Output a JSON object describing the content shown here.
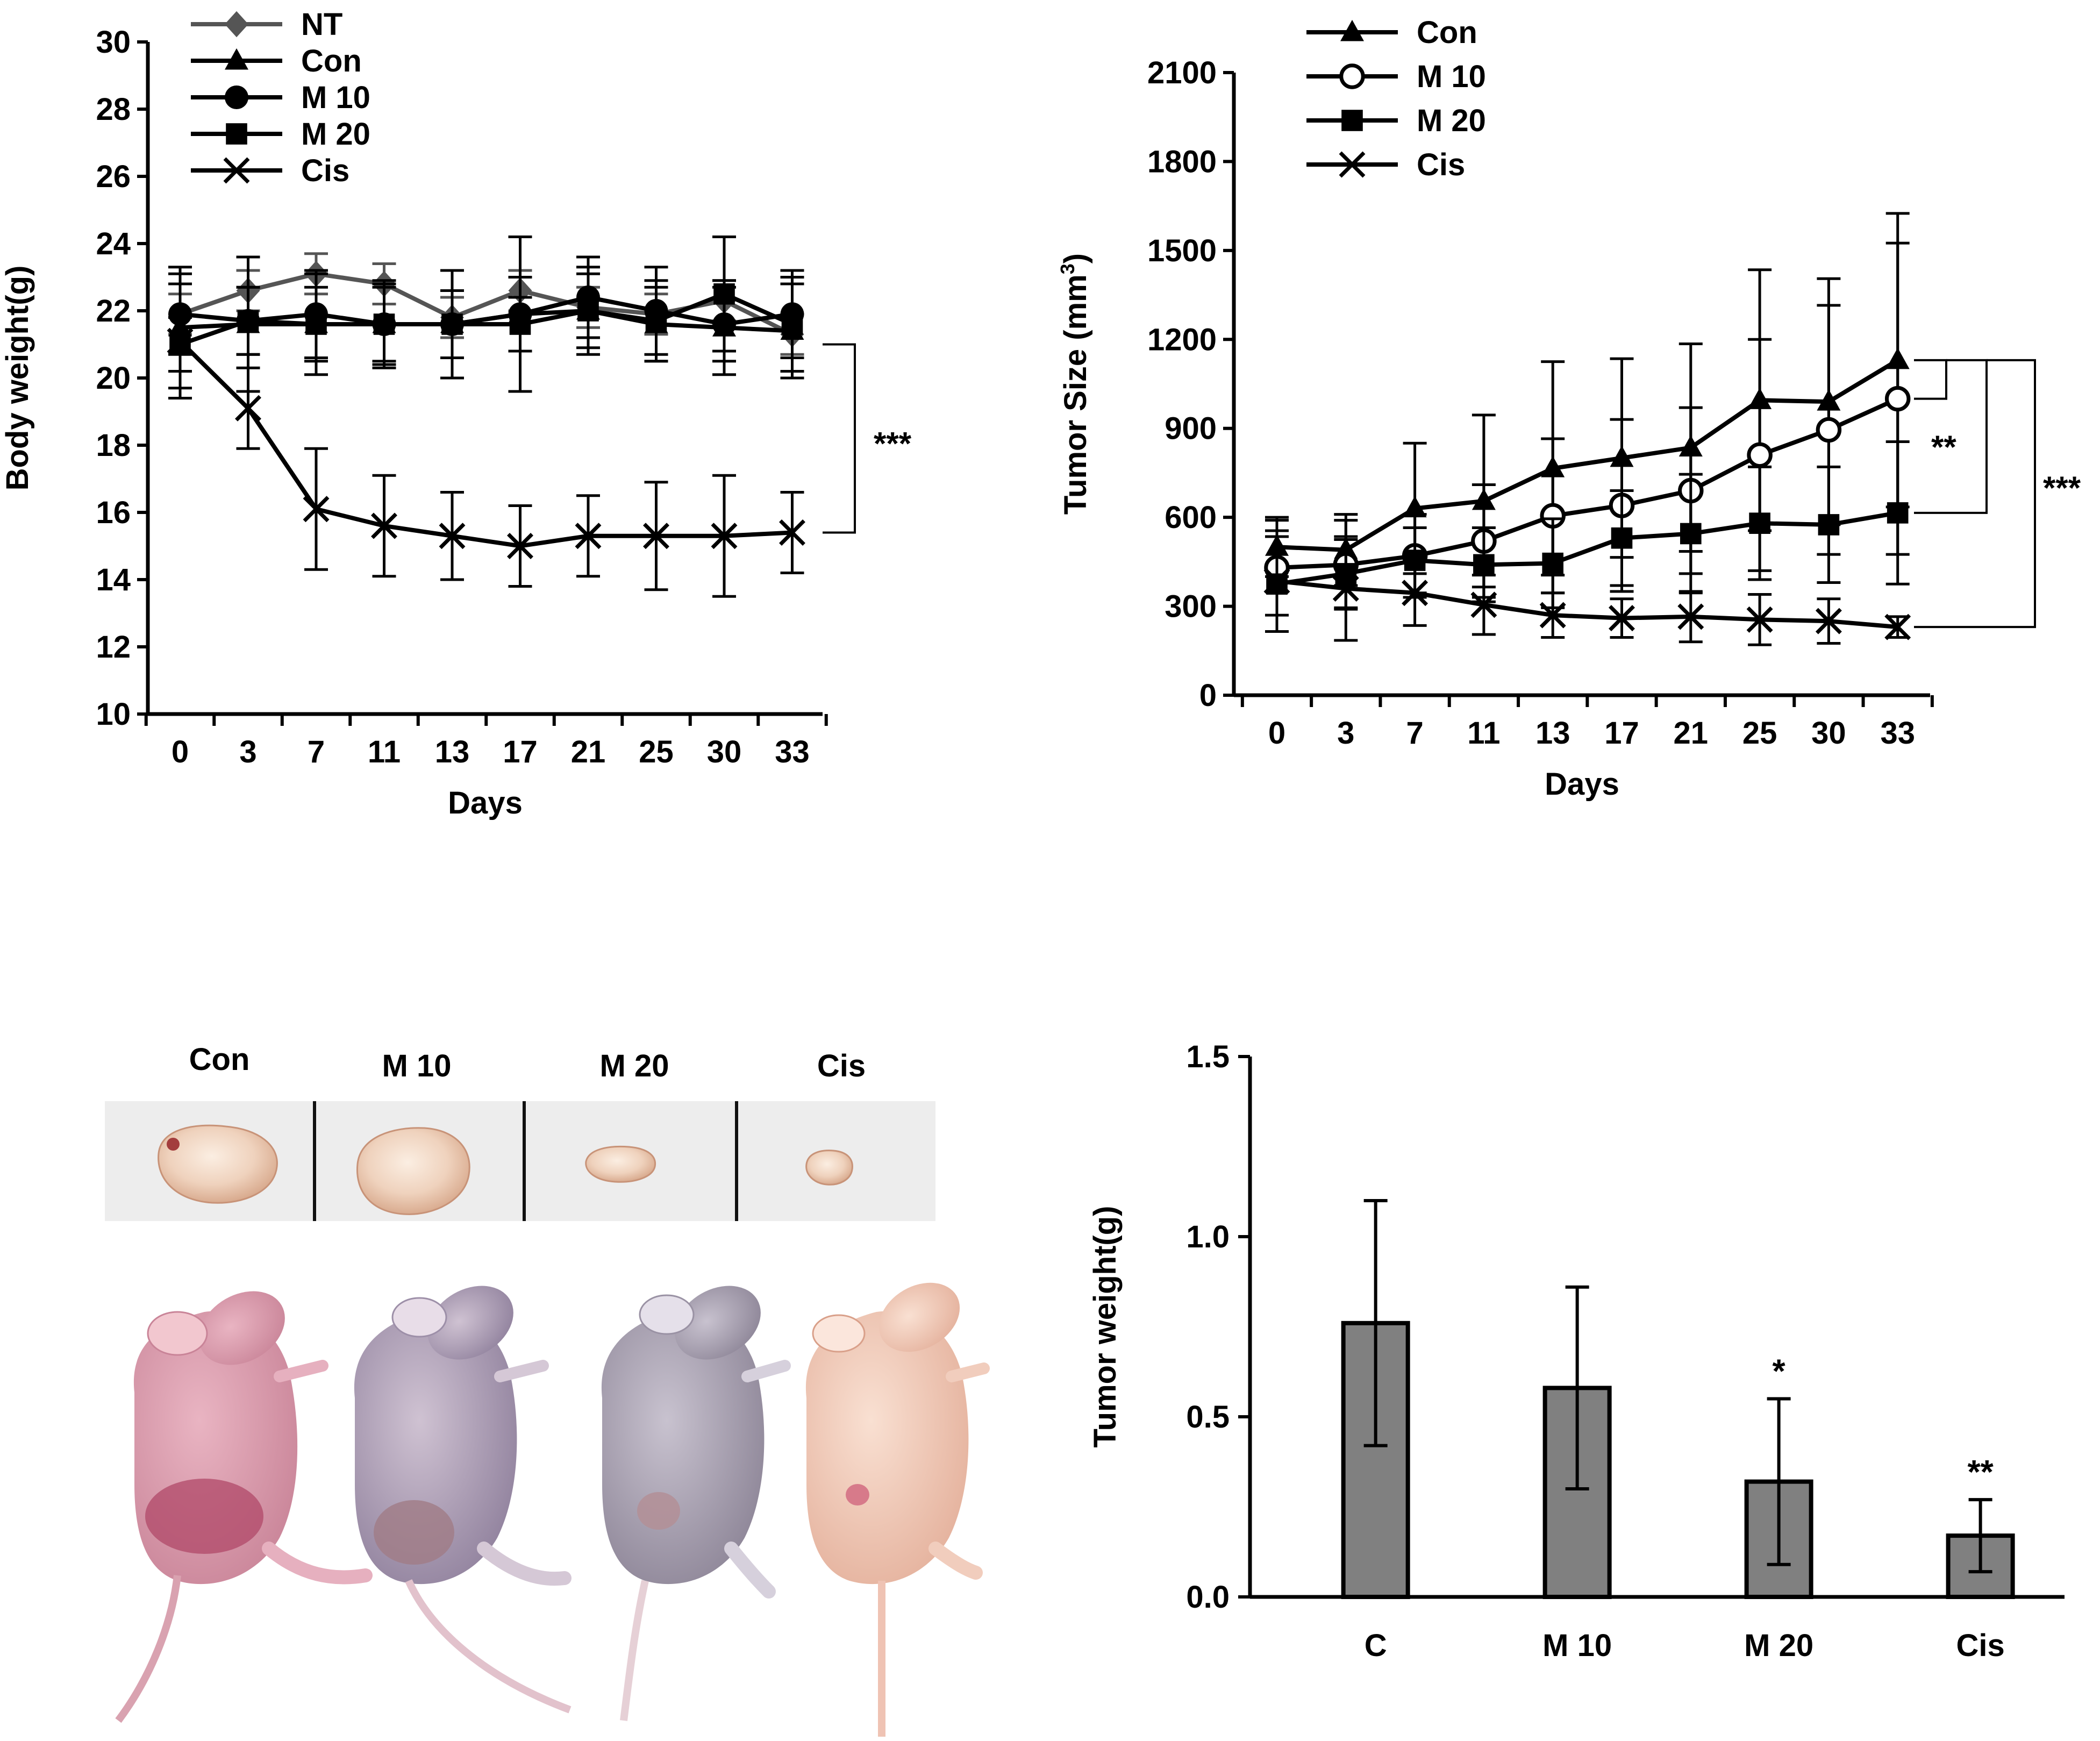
{
  "chart_data": [
    {
      "id": "body_weight",
      "type": "line",
      "ylabel": "Body weight(g)",
      "xlabel": "Days",
      "categories": [
        "0",
        "3",
        "7",
        "11",
        "13",
        "17",
        "21",
        "25",
        "30",
        "33"
      ],
      "ylim": [
        10,
        30
      ],
      "yticks": [
        "10",
        "12",
        "14",
        "16",
        "18",
        "20",
        "22",
        "24",
        "26",
        "28",
        "30"
      ],
      "legend_position": "top-left",
      "series": [
        {
          "name": "NT",
          "marker": "diamond",
          "color": "#555555",
          "values": [
            21.9,
            22.6,
            23.1,
            22.8,
            21.8,
            22.6,
            22.1,
            21.9,
            22.3,
            21.3
          ],
          "errors": [
            0.6,
            0.6,
            0.6,
            0.6,
            0.6,
            0.6,
            0.6,
            0.6,
            0.6,
            0.6
          ]
        },
        {
          "name": "Con",
          "marker": "triangle",
          "color": "#000000",
          "values": [
            21.5,
            21.6,
            21.6,
            21.6,
            21.6,
            21.9,
            22.0,
            21.6,
            21.5,
            21.4
          ],
          "errors": [
            1.8,
            2.0,
            1.5,
            1.3,
            1.6,
            2.3,
            1.3,
            1.1,
            1.4,
            1.4
          ]
        },
        {
          "name": "M 10",
          "marker": "circle",
          "color": "#000000",
          "values": [
            21.9,
            21.7,
            21.9,
            21.6,
            21.6,
            21.9,
            22.4,
            22.0,
            21.6,
            21.9
          ],
          "errors": [
            1.2,
            1.0,
            1.3,
            1.2,
            1.0,
            1.1,
            1.2,
            1.3,
            1.1,
            1.3
          ]
        },
        {
          "name": "M 20",
          "marker": "square",
          "color": "#000000",
          "values": [
            21.0,
            21.7,
            21.6,
            21.6,
            21.6,
            21.6,
            22.0,
            21.7,
            22.5,
            21.6
          ],
          "errors": [
            0.8,
            1.0,
            1.1,
            1.1,
            1.0,
            0.8,
            1.1,
            1.2,
            1.7,
            1.4
          ]
        },
        {
          "name": "Cis",
          "marker": "x",
          "color": "#000000",
          "values": [
            21.1,
            19.1,
            16.1,
            15.6,
            15.3,
            15.0,
            15.3,
            15.3,
            15.3,
            15.4
          ],
          "errors": [
            1.7,
            1.2,
            1.8,
            1.5,
            1.3,
            1.2,
            1.2,
            1.6,
            1.8,
            1.2
          ]
        }
      ],
      "annotations": [
        {
          "text": "***",
          "between": [
            "upper group",
            "Cis"
          ]
        }
      ]
    },
    {
      "id": "tumor_size",
      "type": "line",
      "ylabel": "Tumor Size (mm",
      "ylabel_sup": "3",
      "ylabel_end": ")",
      "xlabel": "Days",
      "categories": [
        "0",
        "3",
        "7",
        "11",
        "13",
        "17",
        "21",
        "25",
        "30",
        "33"
      ],
      "ylim": [
        0,
        2100
      ],
      "yticks": [
        "0",
        "300",
        "600",
        "900",
        "1200",
        "1500",
        "1800",
        "2100"
      ],
      "legend_position": "top-left",
      "series": [
        {
          "name": "Con",
          "marker": "triangle",
          "color": "#000000",
          "values": [
            500,
            490,
            630,
            655,
            765,
            800,
            835,
            995,
            990,
            1130
          ],
          "errors": [
            100,
            120,
            220,
            290,
            360,
            335,
            350,
            440,
            415,
            495
          ]
        },
        {
          "name": "M 10",
          "marker": "circle-open",
          "color": "#000000",
          "values": [
            430,
            440,
            470,
            520,
            605,
            640,
            690,
            810,
            895,
            1000
          ],
          "errors": [
            160,
            150,
            140,
            190,
            260,
            290,
            280,
            390,
            420,
            525
          ]
        },
        {
          "name": "M 20",
          "marker": "square",
          "color": "#000000",
          "values": [
            375,
            410,
            455,
            440,
            445,
            530,
            545,
            580,
            575,
            615
          ],
          "errors": [
            160,
            115,
            110,
            125,
            150,
            160,
            200,
            190,
            195,
            240
          ]
        },
        {
          "name": "Cis",
          "marker": "x",
          "color": "#000000",
          "values": [
            385,
            360,
            345,
            305,
            270,
            260,
            265,
            255,
            250,
            230
          ],
          "errors": [
            170,
            175,
            110,
            100,
            75,
            65,
            85,
            85,
            75,
            35
          ]
        }
      ],
      "annotations": [
        {
          "text": "**",
          "between": [
            "Con",
            "M 20"
          ]
        },
        {
          "text": "***",
          "between": [
            "Con",
            "Cis"
          ]
        }
      ]
    },
    {
      "id": "tumor_weight",
      "type": "bar",
      "ylabel": "Tumor weight(g)",
      "xlabel": "",
      "categories": [
        "C",
        "M 10",
        "M 20",
        "Cis"
      ],
      "values": [
        0.76,
        0.58,
        0.32,
        0.17
      ],
      "errors": [
        0.34,
        0.28,
        0.23,
        0.1
      ],
      "significance": [
        "",
        "",
        "*",
        "**"
      ],
      "ylim": [
        0,
        1.5
      ],
      "yticks": [
        "0.0",
        "0.5",
        "1.0",
        "1.5"
      ],
      "bar_color": "#808080"
    }
  ],
  "photo_panel": {
    "group_labels": [
      "Con",
      "M 10",
      "M 20",
      "Cis"
    ]
  }
}
